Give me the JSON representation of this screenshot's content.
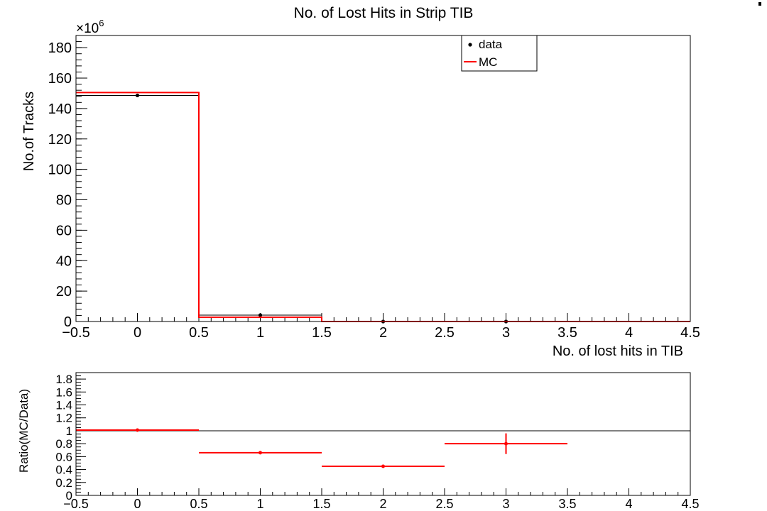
{
  "title": "No. of Lost Hits in Strip TIB",
  "chart_data": [
    {
      "type": "histogram",
      "title": "No. of Lost Hits in Strip TIB",
      "xlabel": "No. of lost hits in TIB",
      "ylabel": "No.of Tracks",
      "y_multiplier": "×10",
      "y_multiplier_exp": "6",
      "xlim": [
        -0.5,
        4.5
      ],
      "ylim": [
        0,
        188
      ],
      "x_ticks": [
        -0.5,
        0,
        0.5,
        1,
        1.5,
        2,
        2.5,
        3,
        3.5,
        4,
        4.5
      ],
      "x_tick_labels": [
        "−0.5",
        "0",
        "0.5",
        "1",
        "1.5",
        "2",
        "2.5",
        "3",
        "3.5",
        "4",
        "4.5"
      ],
      "y_ticks": [
        0,
        20,
        40,
        60,
        80,
        100,
        120,
        140,
        160,
        180
      ],
      "y_tick_labels": [
        "0",
        "20",
        "40",
        "60",
        "80",
        "100",
        "120",
        "140",
        "160",
        "180"
      ],
      "legend": {
        "position": "top-right",
        "entries": [
          {
            "label": "data",
            "style": "marker",
            "color": "#000000"
          },
          {
            "label": "MC",
            "style": "line",
            "color": "#ff0000"
          }
        ]
      },
      "bin_edges": [
        -0.5,
        0.5,
        1.5,
        2.5,
        3.5,
        4.5
      ],
      "series": [
        {
          "name": "data",
          "color": "#000000",
          "style": "step+marker",
          "x": [
            0,
            1,
            2,
            3
          ],
          "values": [
            148.6,
            4.2,
            0.0,
            0.0
          ]
        },
        {
          "name": "MC",
          "color": "#ff0000",
          "style": "step",
          "x": [
            0,
            1,
            2,
            3
          ],
          "values": [
            150.5,
            2.8,
            0.0,
            0.0
          ]
        }
      ]
    },
    {
      "type": "scatter",
      "ylabel": "Ratio(MC/Data)",
      "xlim": [
        -0.5,
        4.5
      ],
      "ylim": [
        0,
        1.9
      ],
      "x_ticks": [
        -0.5,
        0,
        0.5,
        1,
        1.5,
        2,
        2.5,
        3,
        3.5,
        4,
        4.5
      ],
      "x_tick_labels": [
        "−0.5",
        "0",
        "0.5",
        "1",
        "1.5",
        "2",
        "2.5",
        "3",
        "3.5",
        "4",
        "4.5"
      ],
      "y_ticks": [
        0,
        0.2,
        0.4,
        0.6,
        0.8,
        1,
        1.2,
        1.4,
        1.6,
        1.8
      ],
      "y_tick_labels": [
        "0",
        "0.2",
        "0.4",
        "0.6",
        "0.8",
        "1",
        "1.2",
        "1.4",
        "1.6",
        "1.8"
      ],
      "reference_line": 1,
      "series": [
        {
          "name": "",
          "color": "#ff0000",
          "x": [
            0,
            1,
            2,
            3
          ],
          "values": [
            1.01,
            0.66,
            0.45,
            0.8
          ],
          "x_err": [
            0.5,
            0.5,
            0.5,
            0.5
          ],
          "y_err": [
            0.01,
            0.01,
            0.01,
            0.16
          ]
        }
      ]
    }
  ]
}
